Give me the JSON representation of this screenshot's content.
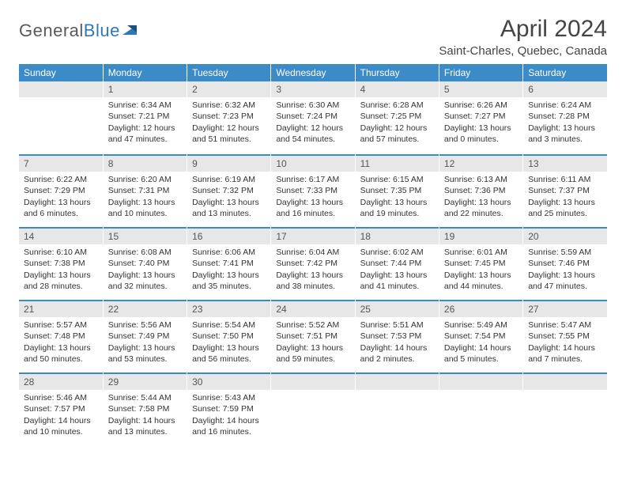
{
  "brand": {
    "part1": "General",
    "part2": "Blue"
  },
  "title": "April 2024",
  "location": "Saint-Charles, Quebec, Canada",
  "colors": {
    "header_bg": "#3b8bc9",
    "header_text": "#ffffff",
    "daynum_bg": "#e7e7e7",
    "border_accent": "#3b8bc9",
    "text": "#333333",
    "logo_gray": "#5a5a5a",
    "logo_blue": "#2f78b7"
  },
  "weekdays": [
    "Sunday",
    "Monday",
    "Tuesday",
    "Wednesday",
    "Thursday",
    "Friday",
    "Saturday"
  ],
  "weeks": [
    [
      null,
      {
        "n": "1",
        "sr": "Sunrise: 6:34 AM",
        "ss": "Sunset: 7:21 PM",
        "dl": "Daylight: 12 hours and 47 minutes."
      },
      {
        "n": "2",
        "sr": "Sunrise: 6:32 AM",
        "ss": "Sunset: 7:23 PM",
        "dl": "Daylight: 12 hours and 51 minutes."
      },
      {
        "n": "3",
        "sr": "Sunrise: 6:30 AM",
        "ss": "Sunset: 7:24 PM",
        "dl": "Daylight: 12 hours and 54 minutes."
      },
      {
        "n": "4",
        "sr": "Sunrise: 6:28 AM",
        "ss": "Sunset: 7:25 PM",
        "dl": "Daylight: 12 hours and 57 minutes."
      },
      {
        "n": "5",
        "sr": "Sunrise: 6:26 AM",
        "ss": "Sunset: 7:27 PM",
        "dl": "Daylight: 13 hours and 0 minutes."
      },
      {
        "n": "6",
        "sr": "Sunrise: 6:24 AM",
        "ss": "Sunset: 7:28 PM",
        "dl": "Daylight: 13 hours and 3 minutes."
      }
    ],
    [
      {
        "n": "7",
        "sr": "Sunrise: 6:22 AM",
        "ss": "Sunset: 7:29 PM",
        "dl": "Daylight: 13 hours and 6 minutes."
      },
      {
        "n": "8",
        "sr": "Sunrise: 6:20 AM",
        "ss": "Sunset: 7:31 PM",
        "dl": "Daylight: 13 hours and 10 minutes."
      },
      {
        "n": "9",
        "sr": "Sunrise: 6:19 AM",
        "ss": "Sunset: 7:32 PM",
        "dl": "Daylight: 13 hours and 13 minutes."
      },
      {
        "n": "10",
        "sr": "Sunrise: 6:17 AM",
        "ss": "Sunset: 7:33 PM",
        "dl": "Daylight: 13 hours and 16 minutes."
      },
      {
        "n": "11",
        "sr": "Sunrise: 6:15 AM",
        "ss": "Sunset: 7:35 PM",
        "dl": "Daylight: 13 hours and 19 minutes."
      },
      {
        "n": "12",
        "sr": "Sunrise: 6:13 AM",
        "ss": "Sunset: 7:36 PM",
        "dl": "Daylight: 13 hours and 22 minutes."
      },
      {
        "n": "13",
        "sr": "Sunrise: 6:11 AM",
        "ss": "Sunset: 7:37 PM",
        "dl": "Daylight: 13 hours and 25 minutes."
      }
    ],
    [
      {
        "n": "14",
        "sr": "Sunrise: 6:10 AM",
        "ss": "Sunset: 7:38 PM",
        "dl": "Daylight: 13 hours and 28 minutes."
      },
      {
        "n": "15",
        "sr": "Sunrise: 6:08 AM",
        "ss": "Sunset: 7:40 PM",
        "dl": "Daylight: 13 hours and 32 minutes."
      },
      {
        "n": "16",
        "sr": "Sunrise: 6:06 AM",
        "ss": "Sunset: 7:41 PM",
        "dl": "Daylight: 13 hours and 35 minutes."
      },
      {
        "n": "17",
        "sr": "Sunrise: 6:04 AM",
        "ss": "Sunset: 7:42 PM",
        "dl": "Daylight: 13 hours and 38 minutes."
      },
      {
        "n": "18",
        "sr": "Sunrise: 6:02 AM",
        "ss": "Sunset: 7:44 PM",
        "dl": "Daylight: 13 hours and 41 minutes."
      },
      {
        "n": "19",
        "sr": "Sunrise: 6:01 AM",
        "ss": "Sunset: 7:45 PM",
        "dl": "Daylight: 13 hours and 44 minutes."
      },
      {
        "n": "20",
        "sr": "Sunrise: 5:59 AM",
        "ss": "Sunset: 7:46 PM",
        "dl": "Daylight: 13 hours and 47 minutes."
      }
    ],
    [
      {
        "n": "21",
        "sr": "Sunrise: 5:57 AM",
        "ss": "Sunset: 7:48 PM",
        "dl": "Daylight: 13 hours and 50 minutes."
      },
      {
        "n": "22",
        "sr": "Sunrise: 5:56 AM",
        "ss": "Sunset: 7:49 PM",
        "dl": "Daylight: 13 hours and 53 minutes."
      },
      {
        "n": "23",
        "sr": "Sunrise: 5:54 AM",
        "ss": "Sunset: 7:50 PM",
        "dl": "Daylight: 13 hours and 56 minutes."
      },
      {
        "n": "24",
        "sr": "Sunrise: 5:52 AM",
        "ss": "Sunset: 7:51 PM",
        "dl": "Daylight: 13 hours and 59 minutes."
      },
      {
        "n": "25",
        "sr": "Sunrise: 5:51 AM",
        "ss": "Sunset: 7:53 PM",
        "dl": "Daylight: 14 hours and 2 minutes."
      },
      {
        "n": "26",
        "sr": "Sunrise: 5:49 AM",
        "ss": "Sunset: 7:54 PM",
        "dl": "Daylight: 14 hours and 5 minutes."
      },
      {
        "n": "27",
        "sr": "Sunrise: 5:47 AM",
        "ss": "Sunset: 7:55 PM",
        "dl": "Daylight: 14 hours and 7 minutes."
      }
    ],
    [
      {
        "n": "28",
        "sr": "Sunrise: 5:46 AM",
        "ss": "Sunset: 7:57 PM",
        "dl": "Daylight: 14 hours and 10 minutes."
      },
      {
        "n": "29",
        "sr": "Sunrise: 5:44 AM",
        "ss": "Sunset: 7:58 PM",
        "dl": "Daylight: 14 hours and 13 minutes."
      },
      {
        "n": "30",
        "sr": "Sunrise: 5:43 AM",
        "ss": "Sunset: 7:59 PM",
        "dl": "Daylight: 14 hours and 16 minutes."
      },
      null,
      null,
      null,
      null
    ]
  ]
}
